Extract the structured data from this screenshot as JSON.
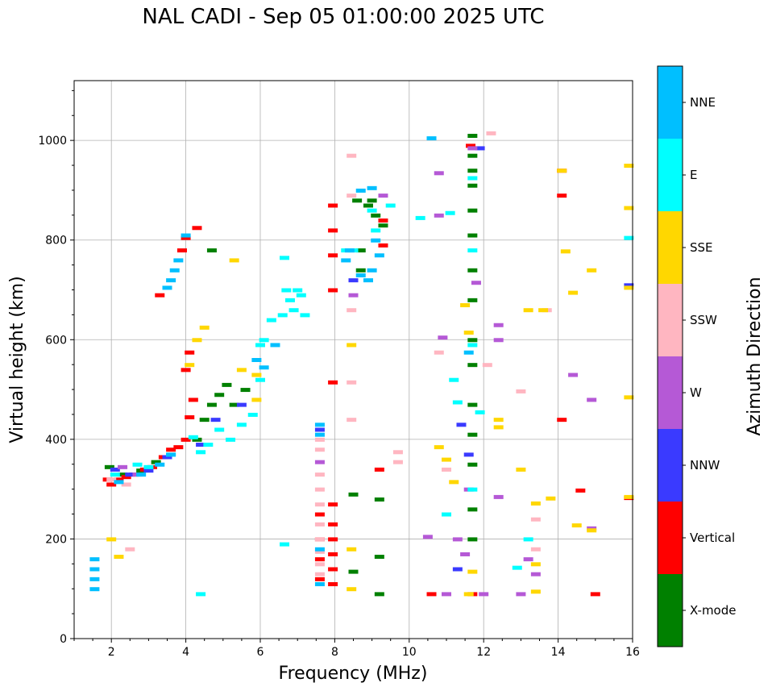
{
  "chart_data": {
    "type": "scatter",
    "title": "NAL CADI - Sep 05 01:00:00 2025 UTC",
    "xlabel": "Frequency (MHz)",
    "ylabel": "Virtual height (km)",
    "xlim": [
      1,
      16
    ],
    "ylim": [
      0,
      1120
    ],
    "xticks": [
      2,
      4,
      6,
      8,
      10,
      12,
      14,
      16
    ],
    "yticks": [
      0,
      200,
      400,
      600,
      800,
      1000
    ],
    "grid": true,
    "colorbar": {
      "label": "Azimuth Direction",
      "categories": [
        "X-mode",
        "Vertical",
        "NNW",
        "W",
        "SSW",
        "SSE",
        "E",
        "NNE"
      ],
      "colors": [
        "#008000",
        "#ff0000",
        "#3a3aff",
        "#b559d6",
        "#ffb6c1",
        "#ffd700",
        "#00ffff",
        "#00bfff"
      ]
    },
    "series": [
      {
        "name": "X-mode",
        "points": [
          [
            1.95,
            345
          ],
          [
            2.3,
            330
          ],
          [
            2.8,
            338
          ],
          [
            3.2,
            355
          ],
          [
            4.3,
            400
          ],
          [
            4.5,
            440
          ],
          [
            4.7,
            470
          ],
          [
            4.9,
            490
          ],
          [
            5.1,
            510
          ],
          [
            5.3,
            470
          ],
          [
            5.6,
            500
          ],
          [
            9.0,
            880
          ],
          [
            8.9,
            870
          ],
          [
            9.1,
            850
          ],
          [
            8.6,
            880
          ],
          [
            9.3,
            830
          ],
          [
            9.2,
            280
          ],
          [
            9.2,
            165
          ],
          [
            9.2,
            90
          ],
          [
            8.5,
            290
          ],
          [
            8.5,
            135
          ],
          [
            11.7,
            1010
          ],
          [
            11.7,
            970
          ],
          [
            11.7,
            940
          ],
          [
            11.7,
            910
          ],
          [
            11.7,
            860
          ],
          [
            11.7,
            810
          ],
          [
            11.7,
            740
          ],
          [
            11.7,
            680
          ],
          [
            11.7,
            600
          ],
          [
            11.7,
            550
          ],
          [
            11.7,
            470
          ],
          [
            11.7,
            410
          ],
          [
            11.7,
            350
          ],
          [
            11.7,
            260
          ],
          [
            11.7,
            200
          ],
          [
            4.7,
            780
          ],
          [
            8.7,
            780
          ],
          [
            8.7,
            740
          ]
        ]
      },
      {
        "name": "Vertical",
        "points": [
          [
            1.9,
            320
          ],
          [
            2.0,
            310
          ],
          [
            2.2,
            320
          ],
          [
            2.4,
            325
          ],
          [
            2.6,
            330
          ],
          [
            2.9,
            340
          ],
          [
            3.1,
            345
          ],
          [
            3.4,
            365
          ],
          [
            3.6,
            380
          ],
          [
            3.8,
            385
          ],
          [
            4.0,
            400
          ],
          [
            4.1,
            445
          ],
          [
            4.2,
            480
          ],
          [
            4.0,
            540
          ],
          [
            4.1,
            575
          ],
          [
            3.9,
            780
          ],
          [
            4.0,
            805
          ],
          [
            3.3,
            690
          ],
          [
            4.3,
            825
          ],
          [
            7.6,
            250
          ],
          [
            7.6,
            200
          ],
          [
            7.6,
            160
          ],
          [
            7.6,
            120
          ],
          [
            7.95,
            870
          ],
          [
            7.95,
            820
          ],
          [
            7.95,
            770
          ],
          [
            7.95,
            700
          ],
          [
            7.95,
            515
          ],
          [
            7.95,
            270
          ],
          [
            7.95,
            230
          ],
          [
            7.95,
            200
          ],
          [
            7.95,
            170
          ],
          [
            7.95,
            140
          ],
          [
            7.95,
            110
          ],
          [
            9.2,
            340
          ],
          [
            9.3,
            790
          ],
          [
            9.3,
            840
          ],
          [
            11.65,
            990
          ],
          [
            14.1,
            890
          ],
          [
            14.1,
            940
          ],
          [
            14.6,
            298
          ],
          [
            15.0,
            90
          ],
          [
            15.9,
            283
          ],
          [
            10.6,
            90
          ],
          [
            11.7,
            90
          ],
          [
            14.1,
            440
          ]
        ]
      },
      {
        "name": "NNW",
        "points": [
          [
            2.1,
            340
          ],
          [
            2.5,
            330
          ],
          [
            3.0,
            338
          ],
          [
            3.5,
            365
          ],
          [
            4.4,
            390
          ],
          [
            4.8,
            440
          ],
          [
            5.5,
            470
          ],
          [
            7.6,
            420
          ],
          [
            8.4,
            780
          ],
          [
            8.5,
            720
          ],
          [
            11.3,
            140
          ],
          [
            11.4,
            430
          ],
          [
            11.6,
            370
          ],
          [
            11.9,
            985
          ],
          [
            15.9,
            710
          ]
        ]
      },
      {
        "name": "W",
        "points": [
          [
            2.3,
            345
          ],
          [
            2.7,
            330
          ],
          [
            7.6,
            355
          ],
          [
            8.5,
            690
          ],
          [
            9.3,
            890
          ],
          [
            10.8,
            935
          ],
          [
            10.8,
            850
          ],
          [
            10.9,
            605
          ],
          [
            11.6,
            300
          ],
          [
            11.7,
            985
          ],
          [
            11.8,
            715
          ],
          [
            12.4,
            630
          ],
          [
            12.4,
            600
          ],
          [
            12.4,
            285
          ],
          [
            13.2,
            160
          ],
          [
            13.4,
            130
          ],
          [
            14.4,
            530
          ],
          [
            14.9,
            480
          ],
          [
            14.9,
            222
          ],
          [
            10.5,
            205
          ],
          [
            11.3,
            200
          ],
          [
            11.5,
            170
          ],
          [
            11.0,
            90
          ],
          [
            12.0,
            90
          ],
          [
            13.0,
            90
          ]
        ]
      },
      {
        "name": "SSW",
        "points": [
          [
            2.0,
            320
          ],
          [
            2.4,
            310
          ],
          [
            2.5,
            180
          ],
          [
            7.6,
            400
          ],
          [
            7.6,
            380
          ],
          [
            7.6,
            330
          ],
          [
            7.6,
            300
          ],
          [
            7.6,
            270
          ],
          [
            7.6,
            230
          ],
          [
            7.6,
            200
          ],
          [
            7.6,
            175
          ],
          [
            7.6,
            150
          ],
          [
            7.6,
            130
          ],
          [
            8.45,
            970
          ],
          [
            8.45,
            890
          ],
          [
            8.45,
            660
          ],
          [
            8.45,
            515
          ],
          [
            8.45,
            440
          ],
          [
            9.7,
            375
          ],
          [
            9.7,
            355
          ],
          [
            10.8,
            575
          ],
          [
            11.0,
            340
          ],
          [
            12.1,
            550
          ],
          [
            12.2,
            1015
          ],
          [
            13.0,
            497
          ],
          [
            13.7,
            660
          ],
          [
            13.4,
            240
          ],
          [
            13.4,
            180
          ]
        ]
      },
      {
        "name": "SSE",
        "points": [
          [
            2.0,
            200
          ],
          [
            2.2,
            165
          ],
          [
            4.1,
            550
          ],
          [
            4.3,
            600
          ],
          [
            4.5,
            625
          ],
          [
            5.3,
            760
          ],
          [
            5.5,
            540
          ],
          [
            5.9,
            530
          ],
          [
            5.9,
            480
          ],
          [
            8.45,
            590
          ],
          [
            8.45,
            180
          ],
          [
            8.45,
            100
          ],
          [
            10.8,
            385
          ],
          [
            11.0,
            360
          ],
          [
            11.2,
            315
          ],
          [
            11.5,
            670
          ],
          [
            11.6,
            615
          ],
          [
            11.7,
            135
          ],
          [
            12.4,
            440
          ],
          [
            12.4,
            425
          ],
          [
            13.0,
            340
          ],
          [
            13.2,
            660
          ],
          [
            13.4,
            272
          ],
          [
            13.4,
            150
          ],
          [
            13.6,
            660
          ],
          [
            14.1,
            940
          ],
          [
            14.2,
            778
          ],
          [
            14.4,
            695
          ],
          [
            14.5,
            228
          ],
          [
            14.9,
            740
          ],
          [
            14.9,
            218
          ],
          [
            15.9,
            950
          ],
          [
            15.9,
            865
          ],
          [
            15.9,
            705
          ],
          [
            15.9,
            485
          ],
          [
            15.9,
            285
          ],
          [
            11.6,
            90
          ],
          [
            13.4,
            95
          ],
          [
            13.8,
            282
          ]
        ]
      },
      {
        "name": "E",
        "points": [
          [
            2.1,
            330
          ],
          [
            2.7,
            350
          ],
          [
            3.0,
            345
          ],
          [
            3.6,
            370
          ],
          [
            4.2,
            405
          ],
          [
            4.4,
            375
          ],
          [
            4.6,
            390
          ],
          [
            4.9,
            420
          ],
          [
            5.2,
            400
          ],
          [
            5.5,
            430
          ],
          [
            5.8,
            450
          ],
          [
            6.0,
            520
          ],
          [
            6.0,
            590
          ],
          [
            6.1,
            600
          ],
          [
            6.3,
            640
          ],
          [
            6.6,
            650
          ],
          [
            6.7,
            700
          ],
          [
            6.8,
            680
          ],
          [
            6.9,
            660
          ],
          [
            7.0,
            700
          ],
          [
            7.1,
            690
          ],
          [
            7.2,
            650
          ],
          [
            6.65,
            765
          ],
          [
            6.65,
            190
          ],
          [
            4.4,
            90
          ],
          [
            8.3,
            780
          ],
          [
            8.5,
            780
          ],
          [
            9.0,
            860
          ],
          [
            9.1,
            820
          ],
          [
            9.5,
            870
          ],
          [
            10.3,
            845
          ],
          [
            11.1,
            855
          ],
          [
            11.2,
            520
          ],
          [
            11.3,
            475
          ],
          [
            11.0,
            250
          ],
          [
            11.7,
            590
          ],
          [
            11.7,
            300
          ],
          [
            11.7,
            925
          ],
          [
            11.7,
            780
          ],
          [
            11.9,
            455
          ],
          [
            13.2,
            200
          ],
          [
            12.9,
            143
          ],
          [
            15.9,
            805
          ]
        ]
      },
      {
        "name": "NNE",
        "points": [
          [
            1.55,
            160
          ],
          [
            1.55,
            140
          ],
          [
            1.55,
            120
          ],
          [
            1.55,
            100
          ],
          [
            2.2,
            315
          ],
          [
            2.8,
            330
          ],
          [
            3.3,
            350
          ],
          [
            3.6,
            370
          ],
          [
            3.8,
            760
          ],
          [
            3.7,
            740
          ],
          [
            3.6,
            720
          ],
          [
            3.5,
            705
          ],
          [
            4.0,
            810
          ],
          [
            5.9,
            560
          ],
          [
            6.1,
            545
          ],
          [
            6.4,
            590
          ],
          [
            7.6,
            430
          ],
          [
            7.6,
            410
          ],
          [
            7.6,
            180
          ],
          [
            7.6,
            110
          ],
          [
            8.4,
            780
          ],
          [
            8.3,
            760
          ],
          [
            8.7,
            730
          ],
          [
            8.9,
            720
          ],
          [
            9.0,
            740
          ],
          [
            9.1,
            800
          ],
          [
            9.2,
            770
          ],
          [
            9.0,
            905
          ],
          [
            8.7,
            900
          ],
          [
            10.6,
            1005
          ],
          [
            11.6,
            575
          ]
        ]
      }
    ]
  }
}
